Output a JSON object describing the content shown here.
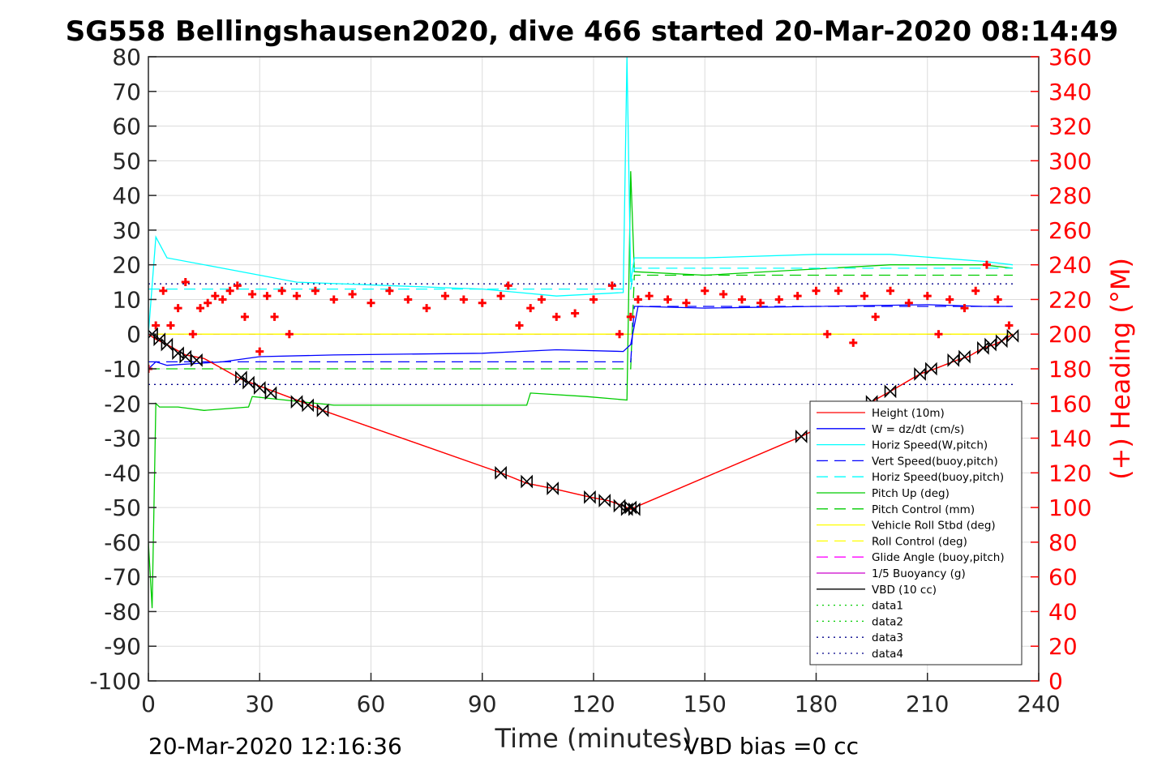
{
  "chart_data": {
    "type": "line",
    "title": "SG558 Bellingshausen2020, dive 466 started 20-Mar-2020 08:14:49",
    "xlabel": "Time (minutes)",
    "ylabel_right": "(+) Heading (°M)",
    "xlim": [
      0,
      240
    ],
    "ylim": [
      -100,
      80
    ],
    "ylim_right": [
      0,
      360
    ],
    "x_ticks": [
      0,
      30,
      60,
      90,
      120,
      150,
      180,
      210,
      240
    ],
    "y_ticks": [
      80,
      70,
      60,
      50,
      40,
      30,
      20,
      10,
      0,
      -10,
      -20,
      -30,
      -40,
      -50,
      -60,
      -70,
      -80,
      -90,
      -100
    ],
    "y_right_ticks": [
      360,
      340,
      320,
      300,
      280,
      260,
      240,
      220,
      200,
      180,
      160,
      140,
      120,
      100,
      80,
      60,
      40,
      20,
      0
    ],
    "grid": true,
    "legend_position": "bottom-right",
    "footer_left": "20-Mar-2020 12:16:36",
    "footer_right": "VBD bias =0 cc",
    "series": [
      {
        "name": "Height (10m)",
        "color": "#ff0000",
        "style": "solid",
        "x": [
          0,
          2,
          5,
          10,
          15,
          25,
          30,
          35,
          40,
          45,
          47,
          95,
          102,
          109,
          119,
          124,
          128,
          130,
          131,
          176,
          195,
          200,
          208,
          212,
          218,
          221,
          225,
          228,
          230,
          233
        ],
        "y": [
          0,
          -1.5,
          -3,
          -6,
          -7,
          -13,
          -15,
          -17,
          -19,
          -21,
          -22,
          -40,
          -43,
          -44.5,
          -47,
          -48,
          -49.5,
          -50.5,
          -50,
          -29.5,
          -19.5,
          -16.5,
          -11.5,
          -10,
          -7.5,
          -6.5,
          -4,
          -3,
          -2,
          0
        ]
      },
      {
        "name": "W = dz/dt (cm/s)",
        "color": "#0000ff",
        "style": "solid",
        "x": [
          0,
          2,
          5,
          20,
          30,
          50,
          90,
          110,
          128,
          130,
          132,
          150,
          180,
          210,
          225,
          233
        ],
        "y": [
          -10,
          -8,
          -9,
          -8,
          -6.5,
          -6,
          -5.5,
          -4.5,
          -5,
          -3,
          8,
          7.5,
          8,
          8.5,
          8,
          8
        ]
      },
      {
        "name": "Horiz Speed(W,pitch)",
        "color": "#00ffff",
        "style": "solid",
        "x": [
          0,
          2,
          5,
          20,
          40,
          90,
          110,
          128,
          129,
          130,
          131,
          150,
          180,
          200,
          225,
          233
        ],
        "y": [
          0,
          28,
          22,
          19,
          15,
          13,
          11,
          12,
          80,
          15,
          22,
          22,
          23,
          23,
          21,
          20
        ]
      },
      {
        "name": "Vert Speed(buoy,pitch)",
        "color": "#0000ff",
        "style": "dashed",
        "x": [
          0,
          130,
          131,
          233
        ],
        "y": [
          -8,
          -8,
          8,
          8
        ]
      },
      {
        "name": "Horiz Speed(buoy,pitch)",
        "color": "#00ffff",
        "style": "dashed",
        "x": [
          0,
          130,
          131,
          233
        ],
        "y": [
          13,
          13,
          19,
          19
        ]
      },
      {
        "name": "Pitch Up (deg)",
        "color": "#00cc00",
        "style": "solid",
        "x": [
          0,
          1,
          2,
          3,
          8,
          15,
          27,
          28,
          50,
          102,
          103,
          118,
          129,
          130,
          131,
          150,
          200,
          225,
          233
        ],
        "y": [
          -60,
          -79,
          -20,
          -21,
          -21,
          -22,
          -21,
          -18,
          -20.5,
          -20.5,
          -17,
          -18,
          -19,
          47,
          18,
          17,
          20,
          20,
          19
        ]
      },
      {
        "name": "Pitch Control (mm)",
        "color": "#00cc00",
        "style": "dashed",
        "x": [
          0,
          130,
          131,
          233
        ],
        "y": [
          -10,
          -10,
          17,
          17
        ]
      },
      {
        "name": "Vehicle Roll Stbd (deg)",
        "color": "#ffff00",
        "style": "solid",
        "x": [
          0,
          233
        ],
        "y": [
          0,
          0
        ]
      },
      {
        "name": "Roll Control (deg)",
        "color": "#ffff00",
        "style": "dashed",
        "x": [
          0,
          233
        ],
        "y": [
          0,
          0
        ]
      },
      {
        "name": "Glide Angle (buoy,pitch)",
        "color": "#ff00ff",
        "style": "dashed",
        "x": [
          0,
          233
        ],
        "y": [
          0,
          0
        ]
      },
      {
        "name": "1/5 Buoyancy (g)",
        "color": "#cc00cc",
        "style": "solid",
        "x": [
          0,
          233
        ],
        "y": [
          0,
          0
        ]
      },
      {
        "name": "VBD (10 cc)",
        "color": "#000000",
        "style": "solid",
        "x": [
          0,
          233
        ],
        "y": [
          0,
          0
        ]
      },
      {
        "name": "data1",
        "color": "#00cc00",
        "style": "dotted",
        "x": [],
        "y": []
      },
      {
        "name": "data2",
        "color": "#00cc00",
        "style": "dotted",
        "x": [],
        "y": []
      },
      {
        "name": "data3",
        "color": "#00008b",
        "style": "dotted",
        "x": [
          0,
          233
        ],
        "y": [
          14.5,
          14.5
        ]
      },
      {
        "name": "data4",
        "color": "#00008b",
        "style": "dotted",
        "x": [
          0,
          233
        ],
        "y": [
          -14.5,
          -14.5
        ]
      }
    ],
    "heading_series": {
      "name": "(+) Heading (°M)",
      "color": "#ff0000",
      "axis": "right",
      "marker": "+",
      "x": [
        0,
        2,
        4,
        6,
        8,
        10,
        12,
        14,
        16,
        18,
        20,
        22,
        24,
        26,
        28,
        30,
        32,
        34,
        36,
        38,
        40,
        45,
        50,
        55,
        60,
        65,
        70,
        75,
        80,
        85,
        90,
        95,
        97,
        100,
        103,
        106,
        110,
        115,
        120,
        125,
        127,
        130,
        132,
        135,
        140,
        145,
        150,
        155,
        160,
        165,
        170,
        175,
        180,
        183,
        186,
        190,
        193,
        196,
        200,
        205,
        210,
        213,
        216,
        220,
        223,
        226,
        229,
        232
      ],
      "y": [
        180,
        205,
        225,
        205,
        215,
        230,
        200,
        215,
        218,
        222,
        220,
        225,
        228,
        210,
        223,
        190,
        222,
        210,
        225,
        200,
        222,
        225,
        220,
        223,
        218,
        225,
        220,
        215,
        222,
        220,
        218,
        222,
        228,
        205,
        215,
        220,
        210,
        212,
        220,
        228,
        200,
        210,
        220,
        222,
        220,
        218,
        225,
        223,
        220,
        218,
        220,
        222,
        225,
        200,
        225,
        195,
        222,
        210,
        225,
        218,
        222,
        200,
        220,
        215,
        225,
        240,
        220,
        205
      ]
    },
    "vbd_markers": {
      "marker": "triangle-hourglass",
      "color": "#000000",
      "x": [
        1,
        3,
        5,
        8,
        10,
        13,
        25,
        27,
        30,
        33,
        40,
        43,
        47,
        95,
        102,
        109,
        119,
        123,
        127,
        129,
        130,
        131,
        176,
        195,
        200,
        208,
        211,
        217,
        220,
        225,
        227,
        230,
        233
      ],
      "y": [
        0,
        -1.5,
        -3,
        -5.5,
        -6.5,
        -7.5,
        -12.5,
        -14,
        -15.5,
        -17,
        -19.5,
        -20.5,
        -22,
        -40,
        -42.5,
        -44.5,
        -47,
        -48,
        -49.5,
        -50.5,
        -50,
        -50.5,
        -29.5,
        -19.5,
        -16.5,
        -11.5,
        -10,
        -7.5,
        -6.5,
        -4,
        -3,
        -2,
        -0.5
      ]
    }
  }
}
